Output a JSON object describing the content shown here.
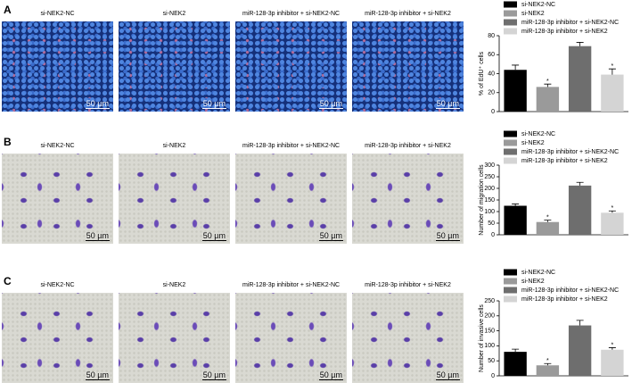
{
  "panels": [
    {
      "label": "A",
      "images": [
        {
          "caption": "si-NEK2-NC",
          "scale": "50 µm"
        },
        {
          "caption": "si-NEK2",
          "scale": "50 µm"
        },
        {
          "caption": "miR-128-3p inhibitor + si-NEK2-NC",
          "scale": "50 µm"
        },
        {
          "caption": "miR-128-3p inhibitor + si-NEK2",
          "scale": "50 µm"
        }
      ]
    },
    {
      "label": "B",
      "images": [
        {
          "caption": "si-NEK2-NC",
          "scale": "50 µm"
        },
        {
          "caption": "si-NEK2",
          "scale": "50 µm"
        },
        {
          "caption": "miR-128-3p inhibitor + si-NEK2-NC",
          "scale": "50 µm"
        },
        {
          "caption": "miR-128-3p inhibitor + si-NEK2",
          "scale": "50 µm"
        }
      ]
    },
    {
      "label": "C",
      "images": [
        {
          "caption": "si-NEK2-NC",
          "scale": "50 µm"
        },
        {
          "caption": "si-NEK2",
          "scale": "50 µm"
        },
        {
          "caption": "miR-128-3p inhibitor + si-NEK2-NC",
          "scale": "50 µm"
        },
        {
          "caption": "miR-128-3p inhibitor + si-NEK2",
          "scale": "50 µm"
        }
      ]
    }
  ],
  "chart_data": [
    {
      "type": "bar",
      "y_label": "% of EdU⁺ cells",
      "categories": [
        "si-NEK2-NC",
        "si-NEK2",
        "miR-128-3p inhibitor + si-NEK2-NC",
        "miR-128-3p inhibitor + si-NEK2"
      ],
      "colors": [
        "#000000",
        "#9a9a9a",
        "#6e6e6e",
        "#d4d4d4"
      ],
      "values": [
        44,
        26,
        69,
        39
      ],
      "errors": [
        5,
        3,
        4,
        6
      ],
      "value_annotations": [
        null,
        "*",
        null,
        "*"
      ],
      "ylim": [
        0,
        80
      ],
      "yticks": [
        0,
        20,
        40,
        60,
        80
      ]
    },
    {
      "type": "bar",
      "y_label": "Number of migration cells",
      "categories": [
        "si-NEK2-NC",
        "si-NEK2",
        "miR-128-3p inhibitor + si-NEK2-NC",
        "miR-128-3p inhibitor + si-NEK2"
      ],
      "colors": [
        "#000000",
        "#9a9a9a",
        "#6e6e6e",
        "#d4d4d4"
      ],
      "values": [
        125,
        55,
        212,
        95
      ],
      "errors": [
        8,
        8,
        14,
        8
      ],
      "value_annotations": [
        null,
        "*",
        null,
        "*"
      ],
      "ylim": [
        0,
        300
      ],
      "yticks": [
        0,
        50,
        100,
        150,
        200,
        250,
        300
      ]
    },
    {
      "type": "bar",
      "y_label": "Number of invasive cells",
      "categories": [
        "si-NEK2-NC",
        "si-NEK2",
        "miR-128-3p inhibitor + si-NEK2-NC",
        "miR-128-3p inhibitor + si-NEK2"
      ],
      "colors": [
        "#000000",
        "#9a9a9a",
        "#6e6e6e",
        "#d4d4d4"
      ],
      "values": [
        80,
        35,
        168,
        87
      ],
      "errors": [
        9,
        6,
        17,
        7
      ],
      "value_annotations": [
        null,
        "*",
        null,
        "*"
      ],
      "ylim": [
        0,
        250
      ],
      "yticks": [
        0,
        50,
        100,
        150,
        200,
        250
      ]
    }
  ]
}
